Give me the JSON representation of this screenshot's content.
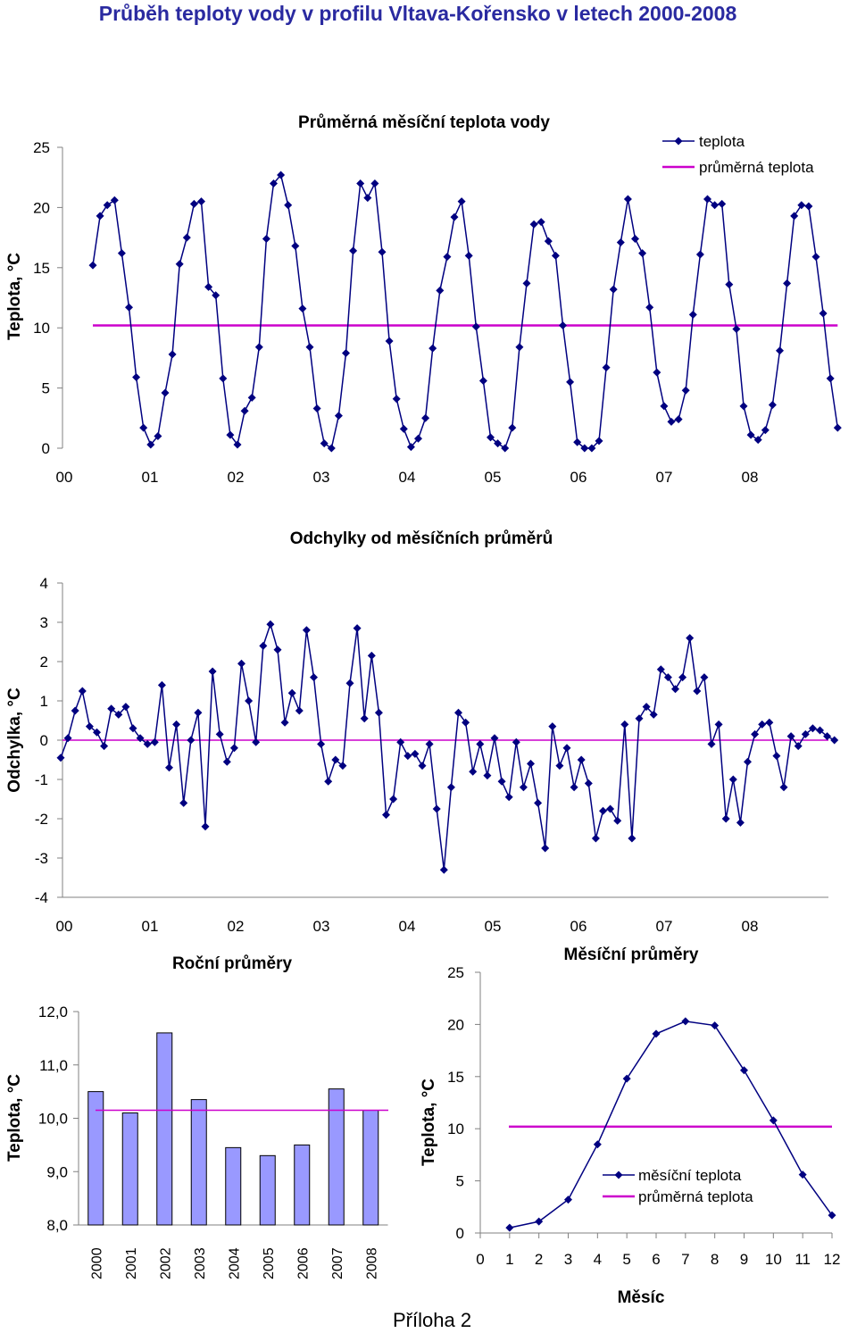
{
  "page_title": "Průběh teploty vody v profilu Vltava-Kořensko v letech 2000-2008",
  "appendix_label": "Příloha 2",
  "colors": {
    "series": "#000080",
    "mean": "#cc00cc",
    "bar_fill": "#9999ff",
    "bar_stroke": "#000000"
  },
  "chart_data": [
    {
      "id": "monthly-temperature",
      "type": "line",
      "title": "Průměrná měsíční teplota vody",
      "ylabel": "Teplota, °C",
      "ylim": [
        0,
        25
      ],
      "yticks": [
        "0",
        "5",
        "10",
        "15",
        "20",
        "25"
      ],
      "xticks": [
        "00",
        "01",
        "02",
        "03",
        "04",
        "05",
        "06",
        "07",
        "08"
      ],
      "legend": [
        "teplota",
        "průměrná teplota"
      ],
      "mean": 10.2,
      "series": [
        {
          "name": "teplota",
          "values": [
            15.2,
            19.3,
            20.2,
            20.6,
            16.2,
            11.7,
            5.9,
            1.7,
            0.3,
            1.0,
            4.6,
            7.8,
            15.3,
            17.5,
            20.3,
            20.5,
            13.4,
            12.7,
            5.8,
            1.1,
            0.3,
            3.1,
            4.2,
            8.4,
            17.4,
            22.0,
            22.7,
            20.2,
            16.8,
            11.6,
            8.4,
            3.3,
            0.4,
            0.0,
            2.7,
            7.9,
            16.4,
            22.0,
            20.8,
            22.0,
            16.3,
            8.9,
            4.1,
            1.6,
            0.1,
            0.8,
            2.5,
            8.3,
            13.1,
            15.9,
            19.2,
            20.5,
            16.0,
            10.1,
            5.6,
            0.9,
            0.4,
            0.0,
            1.7,
            8.4,
            13.7,
            18.6,
            18.8,
            17.2,
            16.0,
            10.2,
            5.5,
            0.5,
            0.0,
            0.0,
            0.6,
            6.7,
            13.2,
            17.1,
            20.7,
            17.4,
            16.2,
            11.7,
            6.3,
            3.5,
            2.2,
            2.4,
            4.8,
            11.1,
            16.1,
            20.7,
            20.2,
            20.3,
            13.6,
            9.9,
            3.5,
            1.1,
            0.7,
            1.5,
            3.6,
            8.1,
            13.7,
            19.3,
            20.2,
            20.1,
            15.9,
            11.2,
            5.8,
            1.7
          ]
        }
      ]
    },
    {
      "id": "deviations",
      "type": "line",
      "title": "Odchylky od měsíčních průměrů",
      "ylabel": "Odchylka, °C",
      "ylim": [
        -4,
        4
      ],
      "yticks": [
        "-4",
        "-3",
        "-2",
        "-1",
        "0",
        "1",
        "2",
        "3",
        "4"
      ],
      "xticks": [
        "00",
        "01",
        "02",
        "03",
        "04",
        "05",
        "06",
        "07",
        "08"
      ],
      "series": [
        {
          "name": "odchylka",
          "values": [
            -0.45,
            0.05,
            0.75,
            1.25,
            0.35,
            0.2,
            -0.15,
            0.8,
            0.65,
            0.85,
            0.3,
            0.05,
            -0.1,
            -0.05,
            1.4,
            -0.7,
            0.4,
            -1.6,
            0.0,
            0.7,
            -2.2,
            1.75,
            0.15,
            -0.55,
            -0.2,
            1.95,
            1.0,
            -0.05,
            2.4,
            2.95,
            2.3,
            0.45,
            1.2,
            0.75,
            2.8,
            1.6,
            -0.1,
            -1.05,
            -0.5,
            -0.65,
            1.45,
            2.85,
            0.55,
            2.15,
            0.7,
            -1.9,
            -1.5,
            -0.05,
            -0.4,
            -0.35,
            -0.65,
            -0.1,
            -1.75,
            -3.3,
            -1.2,
            0.7,
            0.45,
            -0.8,
            -0.1,
            -0.9,
            0.05,
            -1.05,
            -1.45,
            -0.05,
            -1.2,
            -0.6,
            -1.6,
            -2.75,
            0.35,
            -0.65,
            -0.2,
            -1.2,
            -0.5,
            -1.1,
            -2.5,
            -1.8,
            -1.75,
            -2.05,
            0.4,
            -2.5,
            0.55,
            0.85,
            0.65,
            1.8,
            1.6,
            1.3,
            1.6,
            2.6,
            1.25,
            1.6,
            -0.1,
            0.4,
            -2.0,
            -1.0,
            -2.1,
            -0.55,
            0.15,
            0.4,
            0.45,
            -0.4,
            -1.2,
            0.1,
            -0.15,
            0.15,
            0.3,
            0.25,
            0.1,
            0.0
          ]
        }
      ]
    },
    {
      "id": "annual-means",
      "type": "bar",
      "title": "Roční průměry",
      "ylabel": "Teplota, °C",
      "ylim": [
        8,
        12
      ],
      "yticks": [
        "8,0",
        "9,0",
        "10,0",
        "11,0",
        "12,0"
      ],
      "categories": [
        "2000",
        "2001",
        "2002",
        "2003",
        "2004",
        "2005",
        "2006",
        "2007",
        "2008"
      ],
      "values": [
        10.5,
        10.1,
        11.6,
        10.35,
        9.45,
        9.3,
        9.5,
        10.55,
        10.15
      ],
      "mean": 10.15
    },
    {
      "id": "monthly-means",
      "type": "line",
      "title": "Měsíční průměry",
      "xlabel": "Měsíc",
      "ylabel": "Teplota, °C",
      "ylim": [
        0,
        25
      ],
      "xlim": [
        0,
        12
      ],
      "yticks": [
        "0",
        "5",
        "10",
        "15",
        "20",
        "25"
      ],
      "xticks": [
        "0",
        "1",
        "2",
        "3",
        "4",
        "5",
        "6",
        "7",
        "8",
        "9",
        "10",
        "11",
        "12"
      ],
      "legend": [
        "měsíční teplota",
        "průměrná teplota"
      ],
      "mean": 10.2,
      "series": [
        {
          "name": "měsíční teplota",
          "x": [
            1,
            2,
            3,
            4,
            5,
            6,
            7,
            8,
            9,
            10,
            11,
            12
          ],
          "values": [
            0.5,
            1.1,
            3.2,
            8.5,
            14.8,
            19.1,
            20.3,
            19.9,
            15.6,
            10.8,
            5.6,
            1.7
          ]
        }
      ]
    }
  ]
}
